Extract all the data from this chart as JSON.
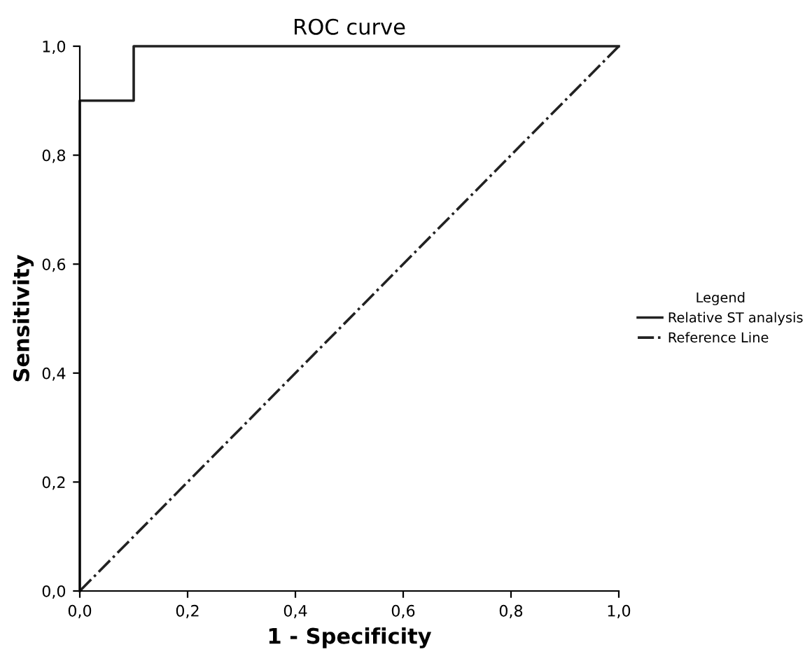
{
  "chart_data": {
    "type": "line",
    "title": "ROC curve",
    "xlabel": "1 - Specificity",
    "ylabel": "Sensitivity",
    "legend_title": "Legend",
    "series": [
      {
        "name": "Relative ST analysis",
        "color": "#222222",
        "x": [
          0,
          0,
          0.1,
          0.1,
          1
        ],
        "values": [
          0,
          0.9,
          0.9,
          1,
          1
        ],
        "line_style": "solid"
      },
      {
        "name": "Reference Line",
        "color": "#222222",
        "x": [
          0,
          1
        ],
        "values": [
          0,
          1
        ],
        "line_style": "dashdot"
      }
    ],
    "xlim": [
      0,
      1
    ],
    "ylim": [
      0,
      1
    ],
    "xticks": [
      {
        "value": 0,
        "label": "0,0"
      },
      {
        "value": 0.2,
        "label": "0,2"
      },
      {
        "value": 0.4,
        "label": "0,4"
      },
      {
        "value": 0.6,
        "label": "0,6"
      },
      {
        "value": 0.8,
        "label": "0,8"
      },
      {
        "value": 1,
        "label": "1,0"
      }
    ],
    "yticks": [
      {
        "value": 0,
        "label": "0,0"
      },
      {
        "value": 0.2,
        "label": "0,2"
      },
      {
        "value": 0.4,
        "label": "0,4"
      },
      {
        "value": 0.6,
        "label": "0,6"
      },
      {
        "value": 0.8,
        "label": "0,8"
      },
      {
        "value": 1,
        "label": "1,0"
      }
    ],
    "grid": false,
    "legend": "right",
    "marker": "none"
  }
}
